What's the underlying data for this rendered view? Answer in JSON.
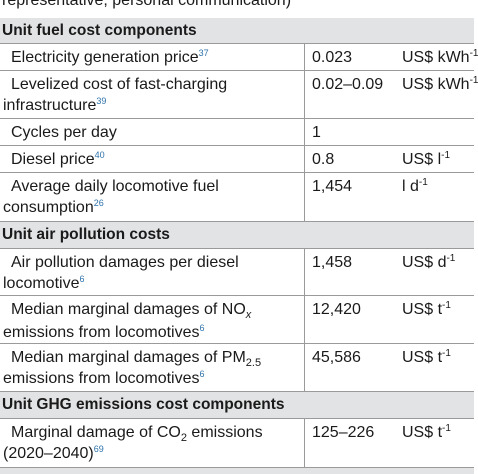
{
  "header_clip": "representative, personal communication)",
  "sections": {
    "fuel": "Unit fuel cost components",
    "air": "Unit air pollution costs",
    "ghg": "Unit GHG emissions cost components"
  },
  "rows": {
    "electricity": {
      "label": "Electricity generation price",
      "ref": "37",
      "value": "0.023",
      "unit": "US$ kWh",
      "unit_sup": "-1"
    },
    "levelized": {
      "label_1": "Levelized cost of fast-charging",
      "label_2": "infrastructure",
      "ref": "39",
      "value": "0.02–0.09",
      "unit": "US$ kWh",
      "unit_sup": "-1"
    },
    "cycles": {
      "label": "Cycles per day",
      "value": "1"
    },
    "diesel": {
      "label": "Diesel price",
      "ref": "40",
      "value": "0.8",
      "unit": "US$ l",
      "unit_sup": "-1"
    },
    "fuel_consumption": {
      "label_1": "Average daily locomotive fuel",
      "label_2": "consumption",
      "ref": "26",
      "value": "1,454",
      "unit": "l d",
      "unit_sup": "-1"
    },
    "air_damages": {
      "label_1": "Air pollution damages per diesel",
      "label_2": "locomotive",
      "ref": "6",
      "value": "1,458",
      "unit": "US$ d",
      "unit_sup": "-1"
    },
    "nox": {
      "label_1": "Median marginal damages of NO",
      "label_sub": "x",
      "label_2": "emissions from locomotives",
      "ref": "6",
      "value": "12,420",
      "unit": "US$ t",
      "unit_sup": "-1"
    },
    "pm": {
      "label_1": "Median marginal damages of PM",
      "label_sub": "2.5",
      "label_2": "emissions from locomotives",
      "ref": "6",
      "value": "45,586",
      "unit": "US$ t",
      "unit_sup": "-1"
    },
    "co2": {
      "label_1": "Marginal damage of CO",
      "label_sub": "2",
      "label_1b": " emissions",
      "label_2": "(2020–2040)",
      "ref": "69",
      "value": "125–226",
      "unit": "US$ t",
      "unit_sup": "-1"
    }
  },
  "colors": {
    "section_bg": "#e2e3e5",
    "ref": "#2f73ab",
    "rule": "#9a9a9a"
  }
}
